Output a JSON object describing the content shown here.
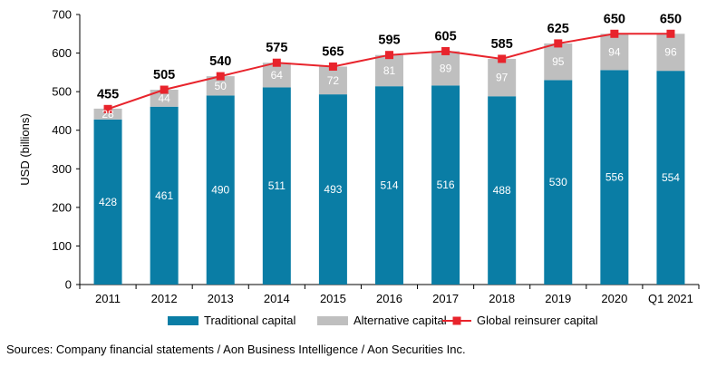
{
  "chart_data": {
    "type": "bar",
    "stacked": true,
    "categories": [
      "2011",
      "2012",
      "2013",
      "2014",
      "2015",
      "2016",
      "2017",
      "2018",
      "2019",
      "2020",
      "Q1 2021"
    ],
    "series": [
      {
        "name": "Traditional capital",
        "type": "bar",
        "color": "#0A7DA5",
        "values": [
          428,
          461,
          490,
          511,
          493,
          514,
          516,
          488,
          530,
          556,
          554
        ]
      },
      {
        "name": "Alternative capital",
        "type": "bar",
        "color": "#BFBFBF",
        "values": [
          28,
          44,
          50,
          64,
          72,
          81,
          89,
          97,
          95,
          94,
          96
        ]
      },
      {
        "name": "Global reinsurer capital",
        "type": "line",
        "color": "#E8242C",
        "values": [
          455,
          505,
          540,
          575,
          565,
          595,
          605,
          585,
          625,
          650,
          650
        ]
      }
    ],
    "ylabel": "USD (billions)",
    "ylim": [
      0,
      700
    ],
    "yticks": [
      0,
      100,
      200,
      300,
      400,
      500,
      600,
      700
    ],
    "grid": false,
    "legend_position": "bottom"
  },
  "source_note": "Sources: Company financial statements / Aon Business Intelligence / Aon Securities Inc."
}
